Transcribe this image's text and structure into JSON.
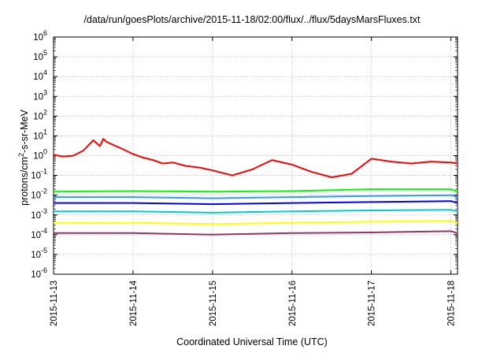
{
  "chart_data": {
    "type": "line",
    "title": "/data/run/goesPlots/archive/2015-11-18/02:00/flux/../flux/5daysMarsFluxes.txt",
    "xlabel": "Coordinated Universal Time (UTC)",
    "ylabel": {
      "prefix": "protons/cm",
      "sup": "2",
      "suffix": "-s-sr-MeV"
    },
    "yscale": "log",
    "ylim": [
      1e-06,
      1000000.0
    ],
    "xlim": [
      "2015-11-13",
      "2015-11-18 02:00"
    ],
    "grid": true,
    "x_ticks": [
      "2015-11-13",
      "2015-11-14",
      "2015-11-15",
      "2015-11-16",
      "2015-11-17",
      "2015-11-18"
    ],
    "y_ticks": [
      {
        "base": "10",
        "exp": "-6"
      },
      {
        "base": "10",
        "exp": "-5"
      },
      {
        "base": "10",
        "exp": "-4"
      },
      {
        "base": "10",
        "exp": "-3"
      },
      {
        "base": "10",
        "exp": "-2"
      },
      {
        "base": "10",
        "exp": "-1"
      },
      {
        "base": "10",
        "exp": "0"
      },
      {
        "base": "10",
        "exp": "1"
      },
      {
        "base": "10",
        "exp": "2"
      },
      {
        "base": "10",
        "exp": "3"
      },
      {
        "base": "10",
        "exp": "4"
      },
      {
        "base": "10",
        "exp": "5"
      },
      {
        "base": "10",
        "exp": "6"
      }
    ],
    "series": [
      {
        "color": "#ff0000",
        "x": [
          "2015-11-13 00:00",
          "2015-11-13 03:00",
          "2015-11-13 06:00",
          "2015-11-13 09:00",
          "2015-11-13 12:00",
          "2015-11-13 14:00",
          "2015-11-13 15:00",
          "2015-11-13 16:00",
          "2015-11-13 18:00",
          "2015-11-13 20:00",
          "2015-11-14 00:00",
          "2015-11-14 03:00",
          "2015-11-14 06:00",
          "2015-11-14 09:00",
          "2015-11-14 12:00",
          "2015-11-14 16:00",
          "2015-11-14 20:00",
          "2015-11-15 00:00",
          "2015-11-15 06:00",
          "2015-11-15 12:00",
          "2015-11-15 18:00",
          "2015-11-15 20:00",
          "2015-11-16 00:00",
          "2015-11-16 06:00",
          "2015-11-16 12:00",
          "2015-11-16 18:00",
          "2015-11-17 00:00",
          "2015-11-17 06:00",
          "2015-11-17 12:00",
          "2015-11-17 18:00",
          "2015-11-18 00:00",
          "2015-11-18 02:00"
        ],
        "y": [
          1.1,
          0.9,
          1.0,
          1.8,
          6.0,
          3.0,
          7.0,
          5.0,
          3.5,
          2.5,
          1.2,
          0.8,
          0.6,
          0.4,
          0.45,
          0.3,
          0.25,
          0.18,
          0.1,
          0.2,
          0.6,
          0.5,
          0.35,
          0.15,
          0.08,
          0.12,
          0.7,
          0.5,
          0.4,
          0.5,
          0.45,
          0.4
        ]
      },
      {
        "color": "#00ff00",
        "x": [
          "2015-11-13 00:00",
          "2015-11-14 00:00",
          "2015-11-15 00:00",
          "2015-11-16 00:00",
          "2015-11-17 00:00",
          "2015-11-18 00:00",
          "2015-11-18 02:00"
        ],
        "y": [
          0.015,
          0.016,
          0.015,
          0.016,
          0.02,
          0.02,
          0.015
        ]
      },
      {
        "color": "#3399ff",
        "x": [
          "2015-11-13 00:00",
          "2015-11-14 00:00",
          "2015-11-15 00:00",
          "2015-11-16 00:00",
          "2015-11-17 00:00",
          "2015-11-18 00:00",
          "2015-11-18 02:00"
        ],
        "y": [
          0.008,
          0.008,
          0.007,
          0.008,
          0.009,
          0.01,
          0.008
        ]
      },
      {
        "color": "#0000ff",
        "x": [
          "2015-11-13 00:00",
          "2015-11-14 00:00",
          "2015-11-15 00:00",
          "2015-11-16 00:00",
          "2015-11-17 00:00",
          "2015-11-18 00:00",
          "2015-11-18 02:00"
        ],
        "y": [
          0.004,
          0.004,
          0.0035,
          0.004,
          0.0045,
          0.005,
          0.004
        ]
      },
      {
        "color": "#00cccc",
        "x": [
          "2015-11-13 00:00",
          "2015-11-14 00:00",
          "2015-11-15 00:00",
          "2015-11-16 00:00",
          "2015-11-17 00:00",
          "2015-11-18 00:00",
          "2015-11-18 02:00"
        ],
        "y": [
          0.0015,
          0.0015,
          0.0013,
          0.0015,
          0.0017,
          0.0018,
          0.0015
        ]
      },
      {
        "color": "#ffff00",
        "x": [
          "2015-11-13 00:00",
          "2015-11-14 00:00",
          "2015-11-15 00:00",
          "2015-11-16 00:00",
          "2015-11-17 00:00",
          "2015-11-18 00:00",
          "2015-11-18 02:00"
        ],
        "y": [
          0.0004,
          0.0004,
          0.00035,
          0.0004,
          0.00045,
          0.0005,
          0.0004
        ]
      },
      {
        "color": "#993366",
        "x": [
          "2015-11-13 00:00",
          "2015-11-14 00:00",
          "2015-11-15 00:00",
          "2015-11-16 00:00",
          "2015-11-17 00:00",
          "2015-11-18 00:00",
          "2015-11-18 02:00"
        ],
        "y": [
          0.00012,
          0.00012,
          0.0001,
          0.00012,
          0.00013,
          0.00015,
          0.00012
        ]
      }
    ]
  }
}
